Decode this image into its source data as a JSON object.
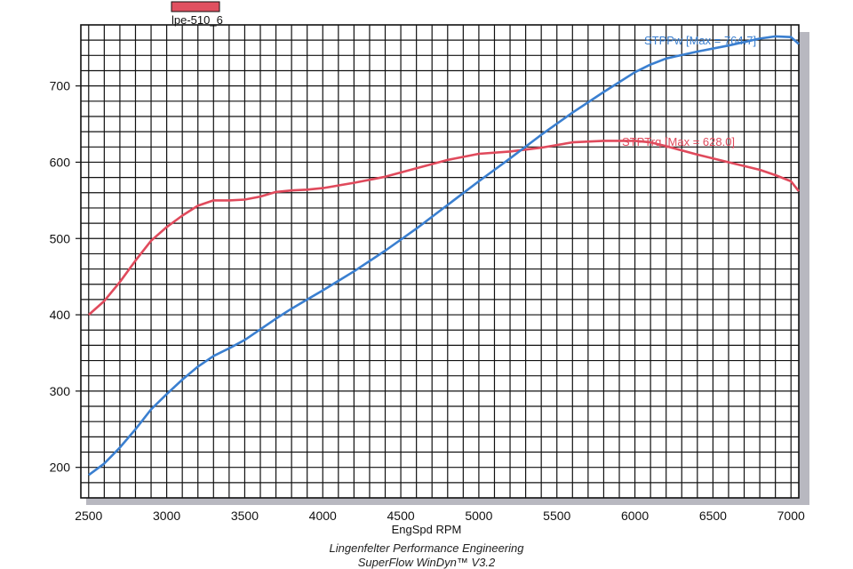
{
  "legend": {
    "label": "lpe-510_6",
    "swatch_color": "#e05060"
  },
  "footer": {
    "line1": "Lingenfelter Performance Engineering",
    "line2": "SuperFlow WinDyn™ V3.2"
  },
  "colors": {
    "grid": "#111111",
    "power": "#3a7fd0",
    "torque": "#e04a5c",
    "shadow": "#b8b8c0"
  },
  "chart_data": {
    "type": "line",
    "xlabel": "EngSpd RPM",
    "ylabel": "",
    "xlim": [
      2450,
      7050
    ],
    "ylim": [
      160,
      780
    ],
    "x_ticks": [
      2500,
      3000,
      3500,
      4000,
      4500,
      5000,
      5500,
      6000,
      6500,
      7000
    ],
    "y_ticks": [
      200,
      300,
      400,
      500,
      600,
      700
    ],
    "grid": true,
    "series": [
      {
        "name": "STPTrq",
        "annotation": "STPTrq [Max = 628.0]",
        "color": "#e04a5c",
        "x": [
          2500,
          2600,
          2700,
          2800,
          2900,
          3000,
          3100,
          3200,
          3300,
          3400,
          3500,
          3600,
          3700,
          3800,
          3900,
          4000,
          4200,
          4400,
          4600,
          4800,
          5000,
          5200,
          5400,
          5600,
          5800,
          6000,
          6100,
          6200,
          6400,
          6600,
          6800,
          6900,
          7000,
          7050
        ],
        "y": [
          400,
          418,
          443,
          471,
          497,
          515,
          530,
          543,
          550,
          550,
          551,
          555,
          561,
          563,
          564,
          566,
          573,
          581,
          592,
          603,
          611,
          614,
          619,
          626,
          628,
          628,
          626,
          621,
          610,
          600,
          590,
          583,
          575,
          562
        ]
      },
      {
        "name": "STPPw",
        "annotation": "STPPw [Max = 764.7]",
        "color": "#3a7fd0",
        "x": [
          2500,
          2600,
          2700,
          2800,
          2900,
          3000,
          3100,
          3200,
          3300,
          3400,
          3500,
          3600,
          3700,
          3800,
          3900,
          4000,
          4200,
          4400,
          4600,
          4800,
          5000,
          5200,
          5400,
          5600,
          5800,
          6000,
          6100,
          6200,
          6400,
          6600,
          6800,
          6900,
          7000,
          7050
        ],
        "y": [
          190,
          205,
          226,
          250,
          276,
          296,
          315,
          332,
          346,
          356,
          367,
          381,
          395,
          408,
          420,
          432,
          457,
          484,
          513,
          544,
          575,
          605,
          636,
          665,
          692,
          718,
          728,
          736,
          745,
          753,
          762,
          765,
          764,
          755
        ]
      }
    ]
  }
}
